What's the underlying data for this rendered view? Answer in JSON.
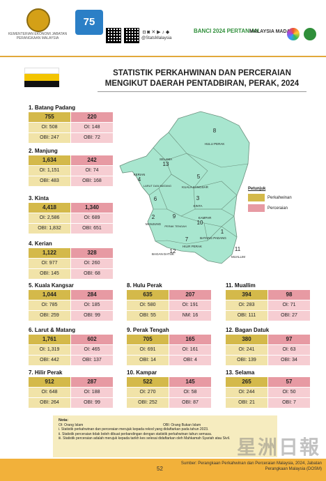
{
  "header": {
    "ministry": "KEMENTERIAN EKONOMI JABATAN PERANGKAAN MALAYSIA",
    "dosm_badge": "75",
    "social_handle": "@StatsMalaysia",
    "banci": "BANCI 2024 PERTANIAN",
    "madani": "MALAYSIA MADANI"
  },
  "title": {
    "line1": "STATISTIK PERKAHWINAN DAN PERCERAIAN",
    "line2": "MENGIKUT DAERAH PENTADBIRAN, PERAK, 2024"
  },
  "colors": {
    "perkahwinan": "#d4b94a",
    "perceraian": "#e79aa3"
  },
  "legend": {
    "title": "Petunjuk",
    "marriage": "Perkahwinan",
    "divorce": "Perceraian"
  },
  "districts": [
    {
      "title": "1. Batang Padang",
      "m": "755",
      "d": "220",
      "r1": [
        "OI: 508",
        "OI: 148"
      ],
      "r2": [
        "OBI: 247",
        "OBI: 72"
      ]
    },
    {
      "title": "2. Manjung",
      "m": "1,634",
      "d": "242",
      "r1": [
        "OI: 1,151",
        "OI: 74"
      ],
      "r2": [
        "OBI: 483",
        "OBI: 168"
      ]
    },
    {
      "title": "3. Kinta",
      "m": "4,418",
      "d": "1,340",
      "r1": [
        "OI: 2,586",
        "OI: 689"
      ],
      "r2": [
        "OBI: 1,832",
        "OBI: 651"
      ]
    },
    {
      "title": "4. Kerian",
      "m": "1,122",
      "d": "328",
      "r1": [
        "OI: 977",
        "OI: 260"
      ],
      "r2": [
        "OBI: 145",
        "OBI: 68"
      ]
    },
    {
      "title": "5. Kuala Kangsar",
      "m": "1,044",
      "d": "284",
      "r1": [
        "OI: 785",
        "OI: 185"
      ],
      "r2": [
        "OBI: 259",
        "OBI: 99"
      ]
    },
    {
      "title": "6. Larut & Matang",
      "m": "1,761",
      "d": "602",
      "r1": [
        "OI: 1,319",
        "OI: 465"
      ],
      "r2": [
        "OBI: 442",
        "OBI: 137"
      ]
    },
    {
      "title": "7. Hilir Perak",
      "m": "912",
      "d": "287",
      "r1": [
        "OI: 648",
        "OI: 188"
      ],
      "r2": [
        "OBI: 264",
        "OBI: 99"
      ]
    },
    {
      "title": "8. Hulu Perak",
      "m": "635",
      "d": "207",
      "r1": [
        "OI: 580",
        "OI: 191"
      ],
      "r2": [
        "OBI: 55",
        "NM: 16"
      ]
    },
    {
      "title": "9. Perak Tengah",
      "m": "705",
      "d": "165",
      "r1": [
        "OI: 691",
        "OI: 161"
      ],
      "r2": [
        "OBI: 14",
        "OBI: 4"
      ]
    },
    {
      "title": "10. Kampar",
      "m": "522",
      "d": "145",
      "r1": [
        "OI: 270",
        "OI: 58"
      ],
      "r2": [
        "OBI: 252",
        "OBI: 87"
      ]
    },
    {
      "title": "11. Muallim",
      "m": "394",
      "d": "98",
      "r1": [
        "OI: 283",
        "OI: 71"
      ],
      "r2": [
        "OBI: 111",
        "OBI: 27"
      ]
    },
    {
      "title": "12. Bagan Datuk",
      "m": "380",
      "d": "97",
      "r1": [
        "OI: 241",
        "OI: 63"
      ],
      "r2": [
        "OBI: 139",
        "OBI: 34"
      ]
    },
    {
      "title": "13. Selama",
      "m": "265",
      "d": "57",
      "r1": [
        "OI: 244",
        "OI: 50"
      ],
      "r2": [
        "OBI: 21",
        "OBI: 7"
      ]
    }
  ],
  "map_labels": [
    {
      "n": "8",
      "name": "HULU PERAK"
    },
    {
      "n": "13",
      "name": "SELAMA"
    },
    {
      "n": "4",
      "name": "KERIAN"
    },
    {
      "n": "5",
      "name": "KUALA KANGSAR"
    },
    {
      "n": "6",
      "name": "LARUT DAN MATANG"
    },
    {
      "n": "3",
      "name": "KINTA"
    },
    {
      "n": "2",
      "name": "MANJUNG"
    },
    {
      "n": "9",
      "name": "PERAK TENGAH"
    },
    {
      "n": "10",
      "name": "KAMPAR"
    },
    {
      "n": "1",
      "name": "BATANG PADANG"
    },
    {
      "n": "7",
      "name": "HILIR PERAK"
    },
    {
      "n": "12",
      "name": "BAGAN DATUK"
    },
    {
      "n": "11",
      "name": "MUALLIM"
    }
  ],
  "nota": {
    "heading": "Nota:",
    "oi": "OI: Orang Islam",
    "obi": "OBI: Orang Bukan Islam",
    "items": [
      "i.    Statistik perkahwinan dan perceraian merujuk kepada rekod yang didaftarkan pada tahun 2023.",
      "ii.   Statistik perceraian tidak boleh dibuat perbandingan dengan statistik perkahwinan tahun semasa.",
      "iii.  Statistik perceraian adalah merujuk kepada tarikh kes selesai didaftarkan oleh Mahkamah Syariah atau Sivil."
    ]
  },
  "page_number": "52",
  "source": "Sumber: Perangkaan Perkahwinan dan Perceraian Malaysia, 2024, Jabatan Perangkaan Malaysia (DOSM)",
  "watermark": "星洲日報"
}
